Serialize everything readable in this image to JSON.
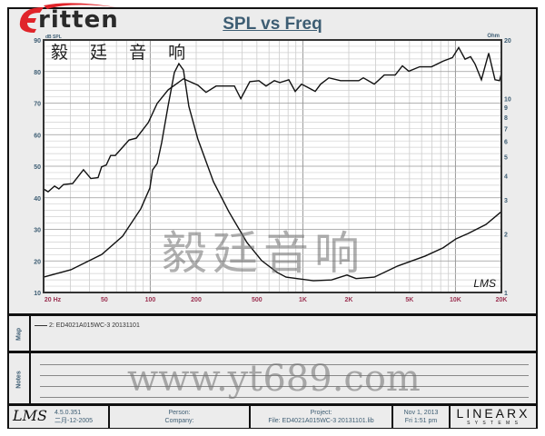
{
  "header": {
    "title": "SPL vs Freq",
    "logo_text": "ritten",
    "logo_letter": "E",
    "logo_cn": "毅 廷 音 响"
  },
  "watermarks": {
    "cn": "毅廷音响",
    "url": "www.yt689.com"
  },
  "colors": {
    "title": "#3d5d73",
    "x_ticks": "#9a3050",
    "y_ticks": "#3d5d73",
    "logo_red": "#e0242a",
    "curve": "#111111"
  },
  "chart_data": {
    "type": "line",
    "title": "SPL vs Freq",
    "x_scale": "log",
    "xlim": [
      20,
      20000
    ],
    "x_ticks": [
      {
        "v": 20,
        "label": "20  Hz"
      },
      {
        "v": 50,
        "label": "50"
      },
      {
        "v": 100,
        "label": "100"
      },
      {
        "v": 200,
        "label": "200"
      },
      {
        "v": 500,
        "label": "500"
      },
      {
        "v": 1000,
        "label": "1K"
      },
      {
        "v": 2000,
        "label": "2K"
      },
      {
        "v": 5000,
        "label": "5K"
      },
      {
        "v": 10000,
        "label": "10K"
      },
      {
        "v": 20000,
        "label": "20K"
      }
    ],
    "y_left": {
      "label": "dB SPL",
      "lim": [
        10,
        90
      ],
      "ticks": [
        10,
        20,
        30,
        40,
        50,
        60,
        70,
        80,
        90
      ]
    },
    "y_right": {
      "label": "Ohm",
      "scale": "log",
      "lim": [
        1,
        20
      ],
      "ticks": [
        1,
        2,
        3,
        4,
        5,
        6,
        7,
        8,
        9,
        10,
        20
      ]
    },
    "grid": true,
    "watermark_label": "LMS",
    "series": [
      {
        "axis": "left",
        "x": [
          20,
          21.4,
          23.6,
          25.2,
          27,
          31,
          36.5,
          40.8,
          45.5,
          48,
          51.5,
          55,
          59,
          72.6,
          81,
          97,
          111,
          131,
          165,
          205,
          232,
          270,
          356,
          392,
          449,
          515,
          574,
          650,
          706,
          809,
          891,
          980,
          1064,
          1205,
          1307,
          1480,
          1767,
          2325,
          2490,
          2938,
          3415,
          4030,
          4490,
          4945,
          5825,
          6965,
          8315,
          9550,
          10500,
          11560,
          12560,
          13430,
          14790,
          16510,
          18160,
          19450,
          20000
        ],
        "y": [
          42.8,
          41.9,
          43.7,
          42.8,
          44.2,
          44.5,
          48.9,
          46.1,
          46.4,
          49.8,
          50.4,
          53.4,
          53.4,
          58.3,
          58.9,
          63.8,
          69.9,
          74.2,
          77.7,
          75.7,
          73.4,
          75.4,
          75.4,
          71.4,
          76.8,
          77.1,
          75.4,
          77.1,
          76.5,
          77.4,
          73.7,
          76.0,
          75.1,
          73.7,
          76.0,
          78.0,
          77.1,
          77.1,
          78.0,
          76.0,
          78.9,
          78.9,
          81.8,
          80.1,
          81.5,
          81.5,
          83.3,
          84.4,
          87.6,
          83.9,
          84.7,
          82.4,
          77.4,
          85.8,
          77.4,
          77.1,
          79.4
        ]
      },
      {
        "axis": "right",
        "x": [
          20,
          30.2,
          48.1,
          65.9,
          86.7,
          99.4,
          103.6,
          111,
          118.8,
          130.7,
          143.9,
          154,
          165,
          179,
          205,
          259.5,
          327,
          430,
          537,
          677,
          776,
          1172,
          1541,
          1946,
          2232,
          2938,
          4190,
          6325,
          8315,
          10070,
          12050,
          15840,
          20000
        ],
        "y": [
          1.2,
          1.31,
          1.57,
          1.95,
          2.7,
          3.45,
          4.28,
          4.62,
          5.92,
          9.1,
          13.6,
          15.1,
          14.0,
          9.1,
          6.18,
          3.72,
          2.61,
          1.81,
          1.46,
          1.27,
          1.2,
          1.15,
          1.16,
          1.23,
          1.18,
          1.2,
          1.37,
          1.54,
          1.7,
          1.89,
          2.01,
          2.24,
          2.61
        ]
      }
    ]
  },
  "map": {
    "label": "Map",
    "entry": "2: ED4021A015WC-3   20131101"
  },
  "notes": {
    "label": "Notes"
  },
  "footer": {
    "lms_logo": "LMS",
    "version": "4.5.0.351",
    "version_date": "二月-12-2005",
    "person": "Person:",
    "company": "Company:",
    "project": "Project:",
    "file": "File: ED4021A015WC-3 20131101.lib",
    "date": "Nov  1, 2013",
    "time": "Fri  1:51 pm",
    "brand": "LINEARX",
    "brand_sub": "S Y S T E M S"
  }
}
